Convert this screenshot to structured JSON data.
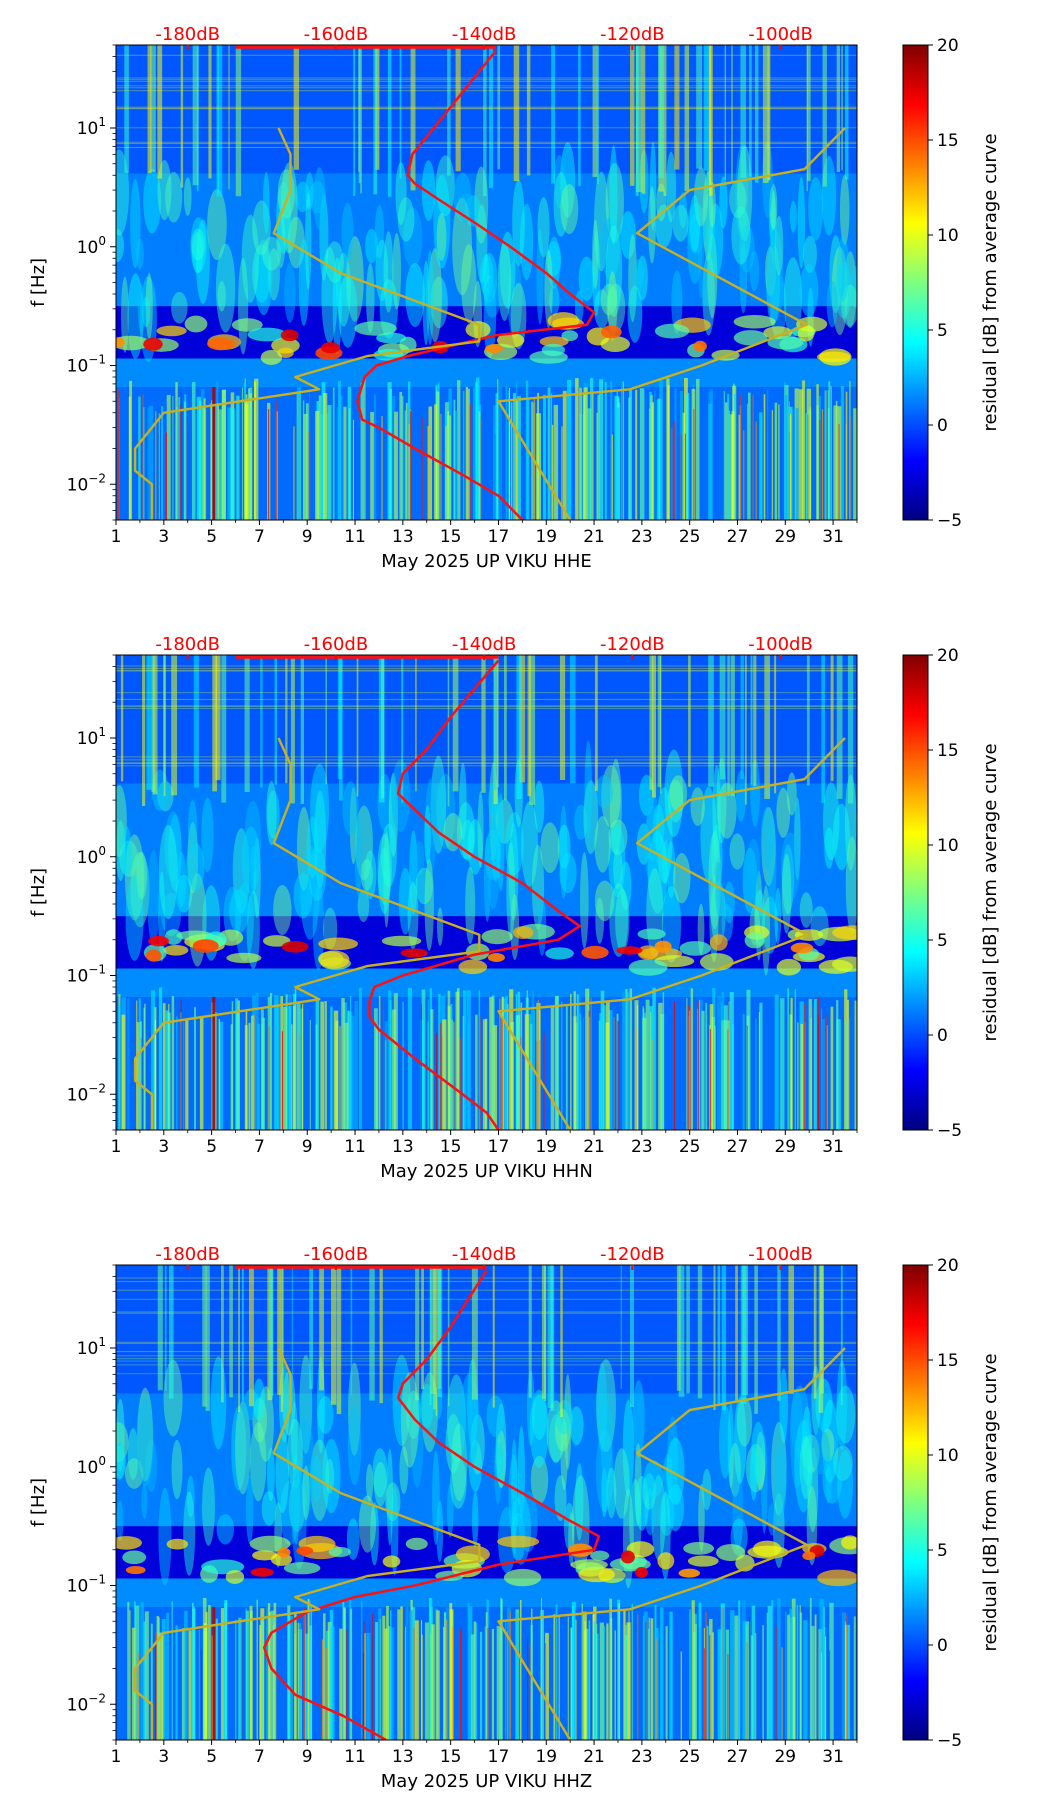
{
  "colors": {
    "jet": [
      "#00007f",
      "#0000ff",
      "#007fff",
      "#00ffff",
      "#7fff7f",
      "#ffff00",
      "#ff7f00",
      "#ff0000",
      "#7f0000"
    ],
    "psd_curve": "#ff1010",
    "noise_model": "#c8b020",
    "top_labels": "#ff0000"
  },
  "chart_data": [
    {
      "type": "heatmap",
      "title": "",
      "xlabel": "May 2025 UP VIKU  HHE",
      "ylabel": "f [Hz]",
      "x_ticks": [
        1,
        3,
        5,
        7,
        9,
        11,
        13,
        15,
        17,
        19,
        21,
        23,
        25,
        27,
        29,
        31
      ],
      "xlim": [
        1,
        32
      ],
      "y_scale": "log",
      "ylim": [
        0.005,
        50
      ],
      "y_ticks": [
        {
          "value": 0.01,
          "base": "10",
          "exp": "−2"
        },
        {
          "value": 0.1,
          "base": "10",
          "exp": "−1"
        },
        {
          "value": 1,
          "base": "10",
          "exp": "0"
        },
        {
          "value": 10,
          "base": "10",
          "exp": "1"
        }
      ],
      "top_axis": {
        "labels": [
          "-180dB",
          "-160dB",
          "-140dB",
          "-120dB",
          "-100dB"
        ],
        "x_positions": [
          4,
          10.2,
          16.4,
          22.6,
          28.8
        ]
      },
      "colorbar": {
        "label": "residual [dB] from average curve",
        "min": -5,
        "max": 20,
        "ticks": [
          -5,
          0,
          5,
          10,
          15,
          20
        ]
      },
      "series": [
        {
          "x": [
            16.9,
            14.3,
            13.4,
            13.2,
            13.5,
            14.5,
            16.0,
            17.5,
            19.0,
            20.0,
            21.0,
            20.7,
            16.9,
            13.2,
            11.9,
            11.4,
            11.1,
            11.3,
            12.0,
            13.5,
            15.5,
            17.0,
            18.0
          ],
          "y": [
            45,
            10,
            6,
            4,
            3.4,
            2.5,
            1.6,
            1.0,
            0.6,
            0.4,
            0.28,
            0.22,
            0.18,
            0.12,
            0.1,
            0.08,
            0.05,
            0.035,
            0.03,
            0.02,
            0.012,
            0.008,
            0.005
          ]
        },
        {
          "x": [
            7.8,
            8.3,
            8.3,
            7.6,
            10.4,
            16.2,
            16.2,
            11.5,
            8.5,
            9.5,
            3.0,
            1.8,
            1.8,
            2.5,
            2.5
          ],
          "y": [
            10,
            6,
            3,
            1.3,
            0.6,
            0.22,
            0.16,
            0.12,
            0.08,
            0.063,
            0.04,
            0.02,
            0.013,
            0.01,
            0.005
          ]
        },
        {
          "x": [
            31.5,
            29.8,
            25.0,
            22.8,
            29.9,
            25.5,
            22.5,
            17.0,
            20.0
          ],
          "y": [
            10,
            4.5,
            3,
            1.3,
            0.22,
            0.1,
            0.063,
            0.05,
            0.005
          ]
        }
      ]
    },
    {
      "type": "heatmap",
      "title": "",
      "xlabel": "May 2025 UP VIKU  HHN",
      "ylabel": "f [Hz]",
      "x_ticks": [
        1,
        3,
        5,
        7,
        9,
        11,
        13,
        15,
        17,
        19,
        21,
        23,
        25,
        27,
        29,
        31
      ],
      "xlim": [
        1,
        32
      ],
      "y_scale": "log",
      "ylim": [
        0.005,
        50
      ],
      "y_ticks": [
        {
          "value": 0.01,
          "base": "10",
          "exp": "−2"
        },
        {
          "value": 0.1,
          "base": "10",
          "exp": "−1"
        },
        {
          "value": 1,
          "base": "10",
          "exp": "0"
        },
        {
          "value": 10,
          "base": "10",
          "exp": "1"
        }
      ],
      "top_axis": {
        "labels": [
          "-180dB",
          "-160dB",
          "-140dB",
          "-120dB",
          "-100dB"
        ],
        "x_positions": [
          4,
          10.2,
          16.4,
          22.6,
          28.8
        ]
      },
      "colorbar": {
        "label": "residual [dB] from average curve",
        "min": -5,
        "max": 20,
        "ticks": [
          -5,
          0,
          5,
          10,
          15,
          20
        ]
      },
      "series": [
        {
          "x": [
            17.0,
            15.0,
            14.0,
            13.0,
            12.8,
            13.5,
            14.5,
            16.0,
            18.0,
            19.5,
            20.4,
            19.5,
            16.0,
            13.0,
            11.8,
            11.6,
            11.6,
            12.0,
            13.5,
            15.5,
            16.5,
            17.0
          ],
          "y": [
            45,
            15,
            8,
            5,
            3.4,
            2.5,
            1.6,
            1.0,
            0.6,
            0.35,
            0.26,
            0.2,
            0.15,
            0.1,
            0.08,
            0.06,
            0.045,
            0.035,
            0.02,
            0.01,
            0.007,
            0.005
          ]
        },
        {
          "x": [
            7.8,
            8.3,
            8.3,
            7.6,
            10.4,
            16.2,
            16.2,
            11.5,
            8.5,
            9.5,
            3.0,
            1.8,
            1.8,
            2.5,
            2.5
          ],
          "y": [
            10,
            6,
            3,
            1.3,
            0.6,
            0.22,
            0.16,
            0.12,
            0.08,
            0.063,
            0.04,
            0.02,
            0.013,
            0.01,
            0.005
          ]
        },
        {
          "x": [
            31.5,
            29.8,
            25.0,
            22.8,
            29.9,
            25.5,
            22.5,
            17.0,
            20.0
          ],
          "y": [
            10,
            4.5,
            3,
            1.3,
            0.22,
            0.1,
            0.063,
            0.05,
            0.005
          ]
        }
      ]
    },
    {
      "type": "heatmap",
      "title": "",
      "xlabel": "May 2025 UP VIKU  HHZ",
      "ylabel": "f [Hz]",
      "x_ticks": [
        1,
        3,
        5,
        7,
        9,
        11,
        13,
        15,
        17,
        19,
        21,
        23,
        25,
        27,
        29,
        31
      ],
      "xlim": [
        1,
        32
      ],
      "y_scale": "log",
      "ylim": [
        0.005,
        50
      ],
      "y_ticks": [
        {
          "value": 0.01,
          "base": "10",
          "exp": "−2"
        },
        {
          "value": 0.1,
          "base": "10",
          "exp": "−1"
        },
        {
          "value": 1,
          "base": "10",
          "exp": "0"
        },
        {
          "value": 10,
          "base": "10",
          "exp": "1"
        }
      ],
      "top_axis": {
        "labels": [
          "-180dB",
          "-160dB",
          "-140dB",
          "-120dB",
          "-100dB"
        ],
        "x_positions": [
          4,
          10.2,
          16.4,
          22.6,
          28.8
        ]
      },
      "colorbar": {
        "label": "residual [dB] from average curve",
        "min": -5,
        "max": 20,
        "ticks": [
          -5,
          0,
          5,
          10,
          15,
          20
        ]
      },
      "series": [
        {
          "x": [
            16.5,
            15.0,
            14.0,
            13.0,
            12.8,
            13.5,
            14.5,
            16.0,
            18.0,
            20.0,
            21.2,
            21.0,
            17.0,
            13.5,
            11.0,
            9.0,
            7.5,
            7.2,
            7.5,
            8.5,
            10.5,
            12.3
          ],
          "y": [
            45,
            15,
            8,
            5,
            3.8,
            2.5,
            1.6,
            1.0,
            0.6,
            0.35,
            0.26,
            0.2,
            0.15,
            0.1,
            0.08,
            0.06,
            0.04,
            0.03,
            0.02,
            0.012,
            0.008,
            0.005
          ]
        },
        {
          "x": [
            7.8,
            8.3,
            8.3,
            7.6,
            10.4,
            16.2,
            16.2,
            11.5,
            8.5,
            9.5,
            3.0,
            1.8,
            1.8,
            2.5,
            2.5
          ],
          "y": [
            10,
            6,
            3,
            1.3,
            0.6,
            0.22,
            0.16,
            0.12,
            0.08,
            0.063,
            0.04,
            0.02,
            0.013,
            0.01,
            0.005
          ]
        },
        {
          "x": [
            31.5,
            29.8,
            25.0,
            22.8,
            29.9,
            25.5,
            22.5,
            17.0,
            20.0
          ],
          "y": [
            10,
            4.5,
            3,
            1.3,
            0.22,
            0.1,
            0.063,
            0.05,
            0.005
          ]
        }
      ]
    }
  ]
}
